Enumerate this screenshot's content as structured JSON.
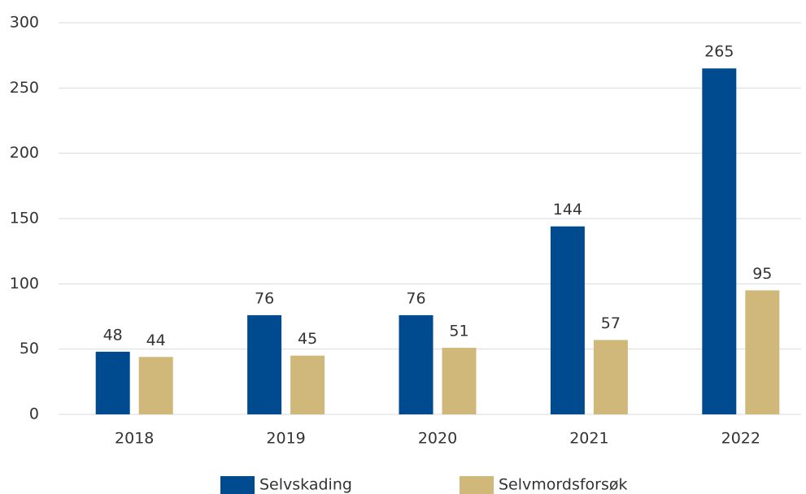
{
  "chart_data": {
    "type": "bar",
    "categories": [
      "2018",
      "2019",
      "2020",
      "2021",
      "2022"
    ],
    "series": [
      {
        "name": "Selvskading",
        "color": "#004a8f",
        "values": [
          48,
          76,
          76,
          144,
          265
        ]
      },
      {
        "name": "Selvmordsforsøk",
        "color": "#cfb87a",
        "values": [
          44,
          45,
          51,
          57,
          95
        ]
      }
    ],
    "ylim": [
      0,
      300
    ],
    "yticks": [
      0,
      50,
      100,
      150,
      200,
      250,
      300
    ],
    "grid": true,
    "legend": "bottom"
  }
}
